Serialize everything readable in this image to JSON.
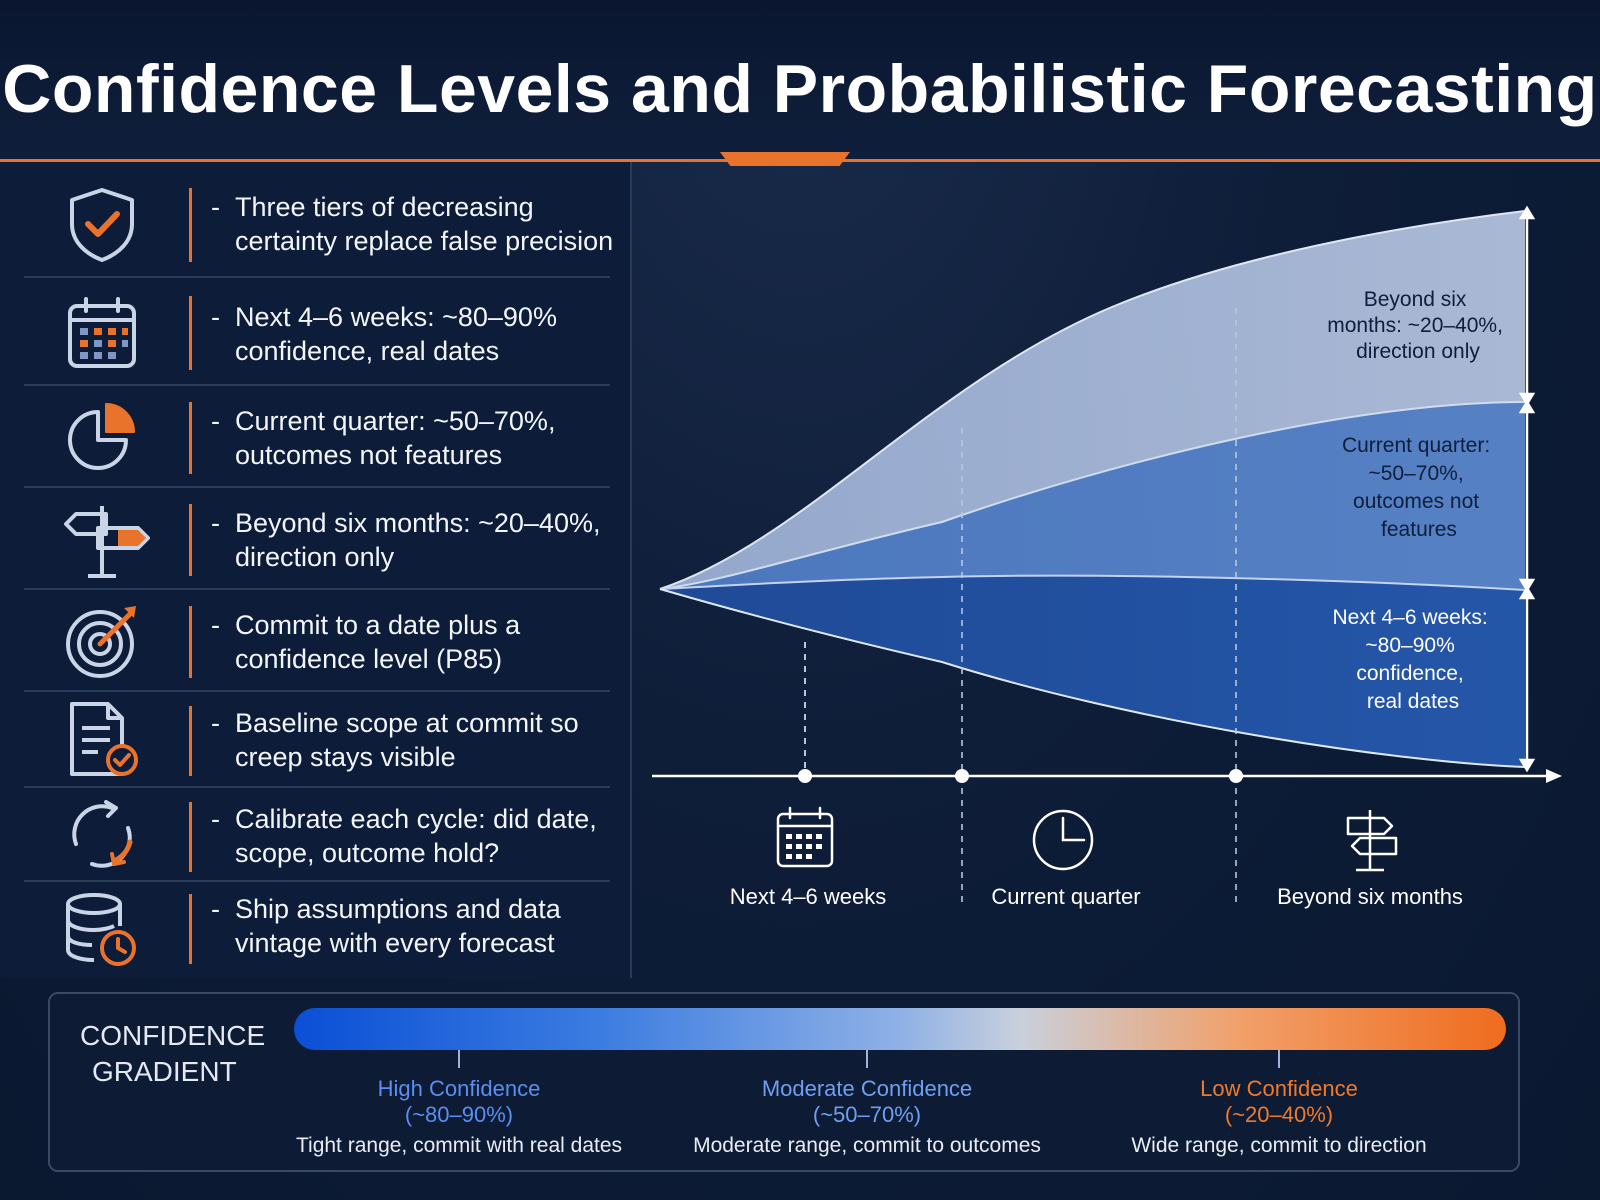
{
  "title": "Confidence Levels and Probabilistic Forecasting",
  "colors": {
    "accent": "#e9732b",
    "high": "#5b8ef0",
    "moderate": "#6f9ff0",
    "low": "#f07a2a"
  },
  "rows": [
    {
      "icon": "shield-check-icon",
      "dash": "-",
      "text": "Three tiers of decreasing certainty replace false precision"
    },
    {
      "icon": "calendar-icon",
      "dash": "-",
      "text": "Next 4–6 weeks: ~80–90% confidence, real dates"
    },
    {
      "icon": "pie-chart-icon",
      "dash": "-",
      "text": "Current quarter: ~50–70%, outcomes not features"
    },
    {
      "icon": "signpost-icon",
      "dash": "-",
      "text": "Beyond six months: ~20–40%, direction only"
    },
    {
      "icon": "target-icon",
      "dash": "-",
      "text": "Commit to a date plus a confidence level (P85)"
    },
    {
      "icon": "document-check-icon",
      "dash": "-",
      "text": "Baseline scope at commit so creep stays visible"
    },
    {
      "icon": "cycle-icon",
      "dash": "-",
      "text": "Calibrate each cycle: did date, scope, outcome hold?"
    },
    {
      "icon": "database-clock-icon",
      "dash": "-",
      "text": "Ship assumptions and data vintage with every forecast"
    }
  ],
  "chart": {
    "band_labels": {
      "top": [
        "Beyond six",
        "months: ~20–40%,",
        "direction only"
      ],
      "middle": [
        "Current quarter:",
        "~50–70%,",
        "outcomes not",
        "features"
      ],
      "bottom": [
        "Next 4–6 weeks:",
        "~80–90%",
        "confidence,",
        "real dates"
      ]
    },
    "horizons": [
      {
        "label": "Next 4–6 weeks",
        "icon": "calendar-icon"
      },
      {
        "label": "Current quarter",
        "icon": "clock-icon"
      },
      {
        "label": "Beyond six months",
        "icon": "signpost-icon"
      }
    ]
  },
  "legend": {
    "title_lines": [
      "CONFIDENCE",
      "GRADIENT"
    ],
    "levels": [
      {
        "name": "High Confidence",
        "range": "(~80–90%)",
        "desc": "Tight range, commit with real dates"
      },
      {
        "name": "Moderate Confidence",
        "range": "(~50–70%)",
        "desc": "Moderate range, commit to outcomes"
      },
      {
        "name": "Low Confidence",
        "range": "(~20–40%)",
        "desc": "Wide range, commit to direction"
      }
    ]
  }
}
